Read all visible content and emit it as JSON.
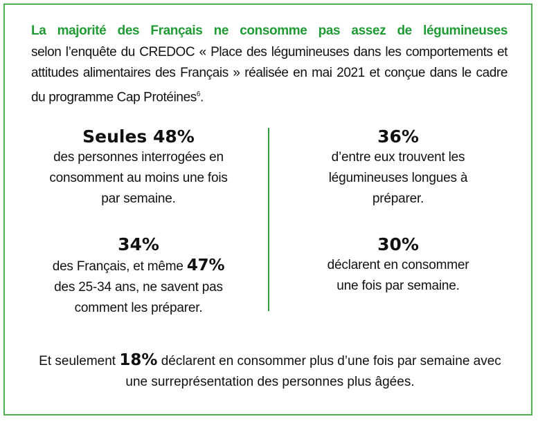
{
  "intro": {
    "title": "La majorité des Français ne consomme pas assez de légumineuses",
    "body": "selon l’enquête du CREDOC « Place des légumineuses dans les comportements et attitudes alimentaires des Français » réalisée en mai 2021 et conçue dans le cadre du programme Cap Protéines",
    "footnote": "6",
    "end": "."
  },
  "stats": [
    {
      "headline": "Seules 48%",
      "text": "des personnes interrogées en consomment au moins une fois par semaine."
    },
    {
      "headline": "36%",
      "text": "d’entre eux trouvent les légumineuses longues à préparer."
    },
    {
      "headline": "34%",
      "text_before": "des Français, et même",
      "highlight": "47%",
      "text_after": "des 25-34 ans, ne savent pas comment les préparer."
    },
    {
      "headline": "30%",
      "text": "déclarent en consommer une fois par semaine."
    }
  ],
  "bottom": {
    "before": "Et seulement",
    "highlight": "18%",
    "after": "déclarent en consommer plus d’une fois par semaine avec une surreprésentation des personnes plus âgées."
  },
  "colors": {
    "accent": "#1f9a34",
    "border": "#4caf50"
  }
}
